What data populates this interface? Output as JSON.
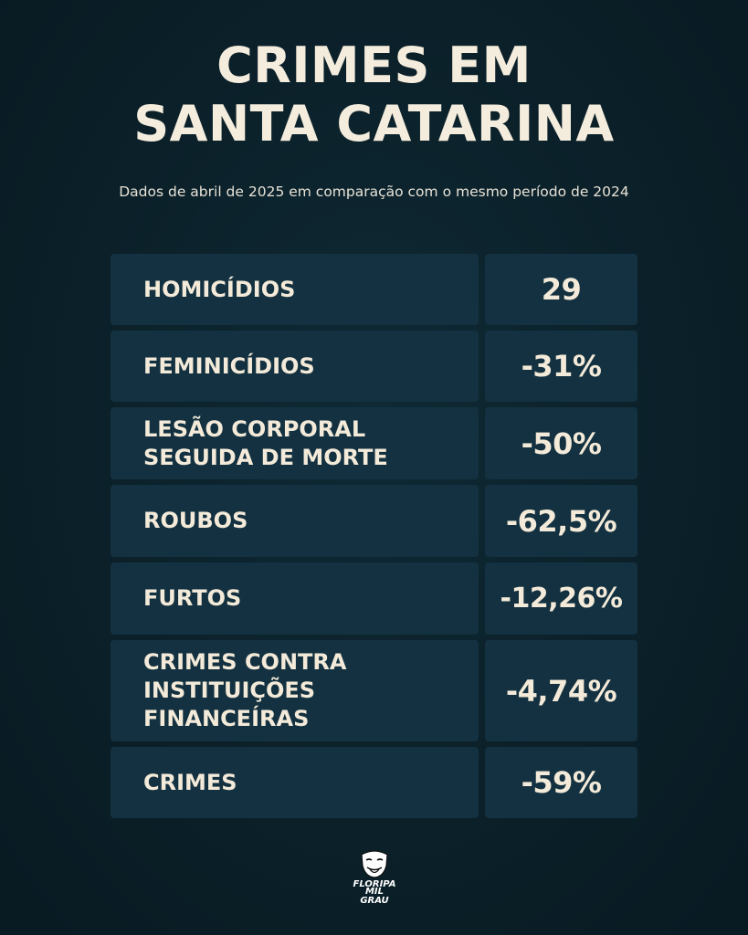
{
  "header": {
    "title_line1": "CRIMES EM",
    "title_line2": "SANTA CATARINA",
    "subtitle": "Dados de abril de 2025 em comparação com o mesmo período de 2024"
  },
  "rows": [
    {
      "label": "HOMICÍDIOS",
      "value": "29"
    },
    {
      "label": "FEMINICÍDIOS",
      "value": "-31%"
    },
    {
      "label": "LESÃO CORPORAL\nSEGUIDA DE MORTE",
      "value": "-50%"
    },
    {
      "label": "ROUBOS",
      "value": "-62,5%"
    },
    {
      "label": "FURTOS",
      "value": "-12,26%"
    },
    {
      "label": "CRIMES CONTRA\nINSTITUIÇÕES\nFINANCEÍRAS",
      "value": "-4,74%"
    },
    {
      "label": "CRIMES",
      "value": "-59%"
    }
  ],
  "logo": {
    "line1": "FLORIPA",
    "line2": "MIL GRAU",
    "icon": "mask-icon"
  },
  "colors": {
    "background": "#0b2029",
    "cell": "#133140",
    "text": "#f3ead9"
  }
}
